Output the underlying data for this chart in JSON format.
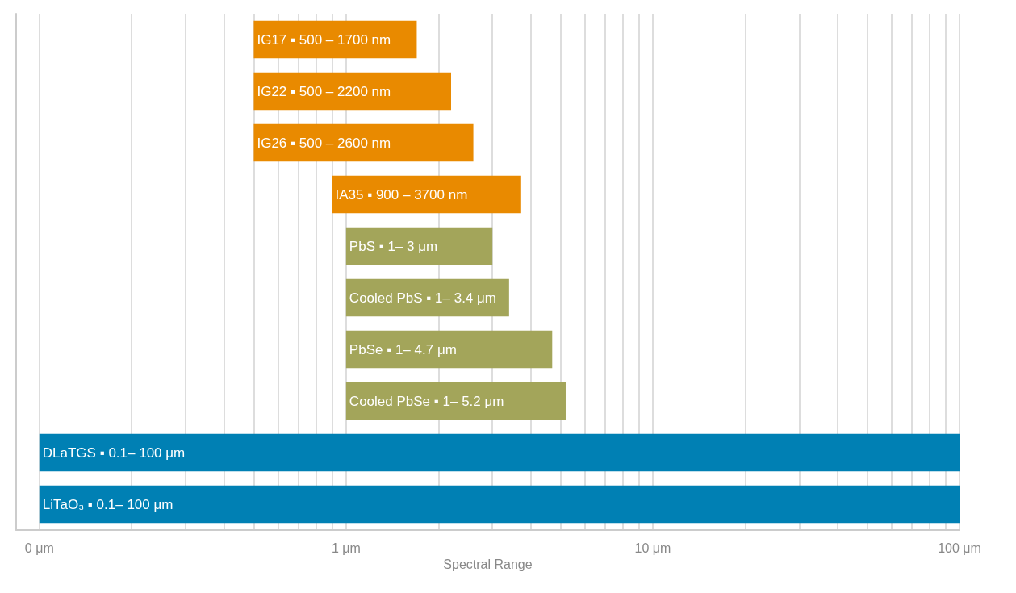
{
  "chart_data": {
    "type": "bar",
    "orientation": "horizontal",
    "xlabel": "Spectral Range",
    "categories": [
      null,
      null,
      null,
      null,
      null,
      null,
      null,
      null,
      null,
      null
    ],
    "base": [
      0.5,
      0.5,
      0.5,
      0.9,
      1,
      1,
      1,
      1,
      0.1,
      0.1
    ],
    "values": [
      1.2,
      1.7,
      2.1,
      2.8,
      2,
      2.4,
      3.7,
      4.2,
      99.9,
      99.9
    ],
    "colors": [
      "#e98a00",
      "#e98a00",
      "#e98a00",
      "#e98a00",
      "#a3a55a",
      "#a3a55a",
      "#a3a55a",
      "#a3a55a",
      "#0080b4",
      "#0080b4"
    ],
    "value_labels": [
      "IG17 ▪ 500 – 1700 nm",
      "IG22 ▪ 500 – 2200 nm",
      "IG26 ▪ 500 – 2600 nm",
      "IA35 ▪ 900 – 3700 nm",
      "PbS ▪ 1– 3 μm",
      "Cooled PbS ▪ 1– 3.4 μm",
      "PbSe ▪ 1– 4.7 μm",
      "Cooled PbSe ▪ 1– 5.2 μm",
      "DLaTGS ▪ 0.1– 100 μm",
      "LiTaO₃ ▪ 0.1– 100 μm"
    ],
    "log": "x",
    "xlim": [
      0.084,
      100
    ],
    "xticks": [
      {
        "value": 0.1,
        "label": "0 μm"
      },
      {
        "value": 0.2,
        "label": null
      },
      {
        "value": 0.3,
        "label": null
      },
      {
        "value": 0.4,
        "label": null
      },
      {
        "value": 0.5,
        "label": null
      },
      {
        "value": 0.6,
        "label": null
      },
      {
        "value": 0.7,
        "label": null
      },
      {
        "value": 0.8,
        "label": null
      },
      {
        "value": 0.9,
        "label": null
      },
      {
        "value": 1,
        "label": "1 μm"
      },
      {
        "value": 2,
        "label": null
      },
      {
        "value": 3,
        "label": null
      },
      {
        "value": 4,
        "label": null
      },
      {
        "value": 5,
        "label": null
      },
      {
        "value": 6,
        "label": null
      },
      {
        "value": 7,
        "label": null
      },
      {
        "value": 8,
        "label": null
      },
      {
        "value": 9,
        "label": null
      },
      {
        "value": 10,
        "label": "10 μm"
      },
      {
        "value": 20,
        "label": null
      },
      {
        "value": 30,
        "label": null
      },
      {
        "value": 40,
        "label": null
      },
      {
        "value": 50,
        "label": null
      },
      {
        "value": 60,
        "label": null
      },
      {
        "value": 70,
        "label": null
      },
      {
        "value": 80,
        "label": null
      },
      {
        "value": 90,
        "label": null
      },
      {
        "value": 100,
        "label": "100 μm"
      }
    ],
    "grid": "x",
    "tick_labels": "x"
  }
}
